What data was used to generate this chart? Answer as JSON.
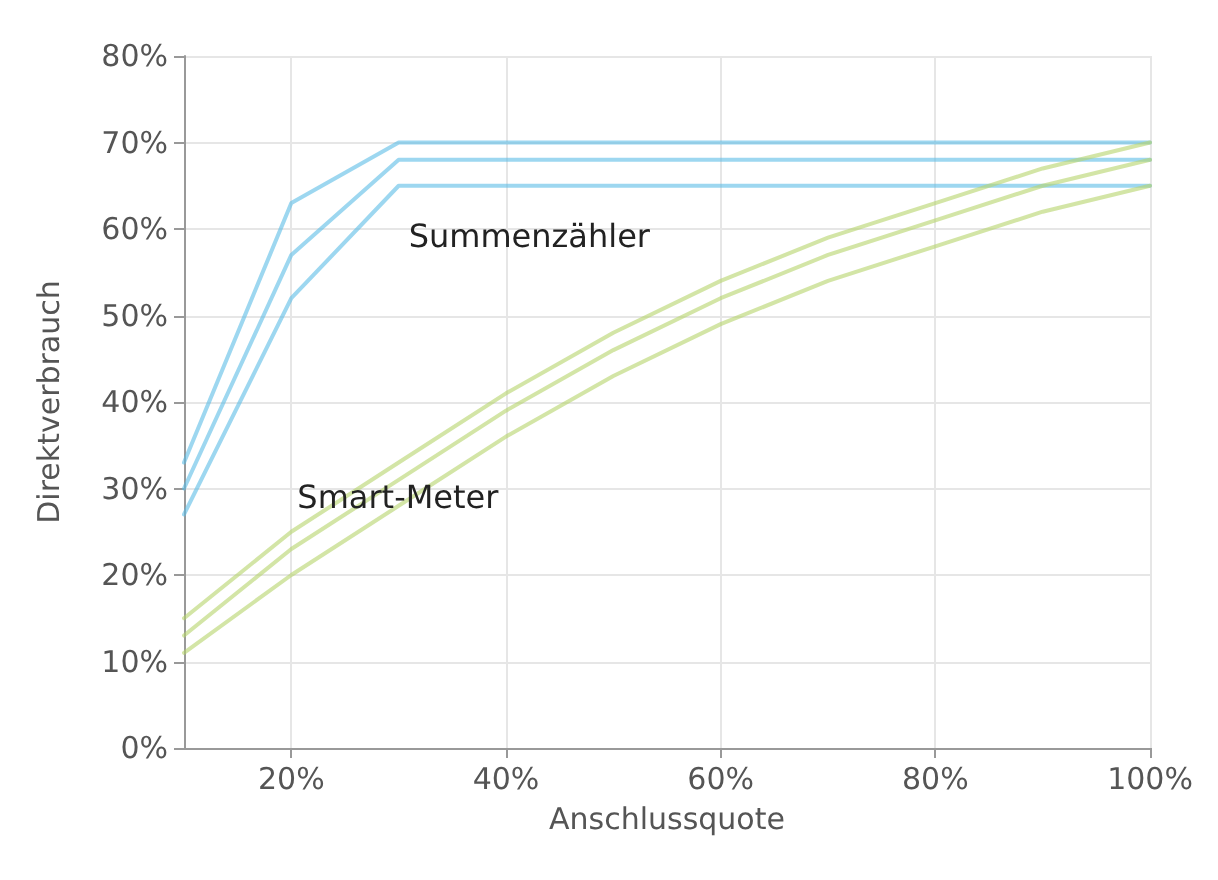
{
  "chart_data": {
    "type": "line",
    "xlabel": "Anschlussquote",
    "ylabel": "Direktverbrauch",
    "x": [
      10,
      20,
      30,
      40,
      50,
      60,
      70,
      80,
      90,
      100
    ],
    "series": [
      {
        "color": "#5bbde6",
        "values": [
          27,
          52,
          65,
          65,
          65,
          65,
          65,
          65,
          65,
          65
        ]
      },
      {
        "name": "Summenzähler",
        "color": "#5bbde6",
        "values": [
          30,
          57,
          68,
          68,
          68,
          68,
          68,
          68,
          68,
          68
        ]
      },
      {
        "color": "#5bbde6",
        "values": [
          33,
          63,
          70,
          70,
          70,
          70,
          70,
          70,
          70,
          70
        ]
      },
      {
        "color": "#b5d36a",
        "values": [
          11,
          20,
          28,
          36,
          43,
          49,
          54,
          58,
          62,
          65
        ]
      },
      {
        "name": "Smart-Meter",
        "color": "#b5d36a",
        "values": [
          13,
          23,
          31,
          39,
          46,
          52,
          57,
          61,
          65,
          68
        ]
      },
      {
        "color": "#b5d36a",
        "values": [
          15,
          25,
          33,
          41,
          48,
          54,
          59,
          63,
          67,
          70
        ]
      }
    ],
    "xlim": [
      10,
      100
    ],
    "xticks": [
      {
        "value": 20,
        "label": "20%"
      },
      {
        "value": 40,
        "label": "40%"
      },
      {
        "value": 60,
        "label": "60%"
      },
      {
        "value": 80,
        "label": "80%"
      },
      {
        "value": 100,
        "label": "100%"
      }
    ],
    "ylim": [
      0,
      80
    ],
    "yticks": [
      {
        "value": 0,
        "label": "0%"
      },
      {
        "value": 10,
        "label": "10%"
      },
      {
        "value": 20,
        "label": "20%"
      },
      {
        "value": 30,
        "label": "30%"
      },
      {
        "value": 40,
        "label": "40%"
      },
      {
        "value": 50,
        "label": "50%"
      },
      {
        "value": 60,
        "label": "60%"
      },
      {
        "value": 70,
        "label": "70%"
      },
      {
        "value": 80,
        "label": "80%"
      }
    ],
    "grid": true,
    "marker": "none",
    "line_style": "solid"
  }
}
